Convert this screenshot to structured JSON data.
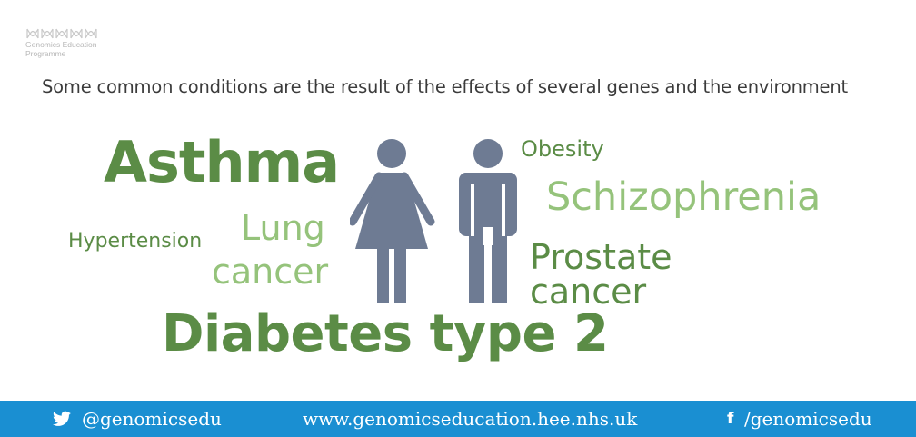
{
  "logo": {
    "line1": "Genomics Education",
    "line2": "Programme"
  },
  "headline": "Some common conditions are the result of the effects of several genes and the environment",
  "conditions": {
    "asthma": "Asthma",
    "obesity": "Obesity",
    "schizophrenia": "Schizophrenia",
    "lung": "Lung",
    "lung_cancer": "cancer",
    "hypertension": "Hypertension",
    "prostate": "Prostate",
    "prostate_cancer": "cancer",
    "diabetes": "Diabetes type 2"
  },
  "footer": {
    "twitter": "@genomicsedu",
    "website": "www.genomicseducation.hee.nhs.uk",
    "facebook": "/genomicsedu"
  },
  "colors": {
    "dark_green": "#5b8c46",
    "light_green": "#95c37b",
    "figure": "#6e7b93",
    "footer_bg": "#1a8fd2"
  },
  "icons": [
    "dna-logo-icon",
    "female-figure-icon",
    "male-figure-icon",
    "twitter-icon",
    "facebook-icon"
  ]
}
